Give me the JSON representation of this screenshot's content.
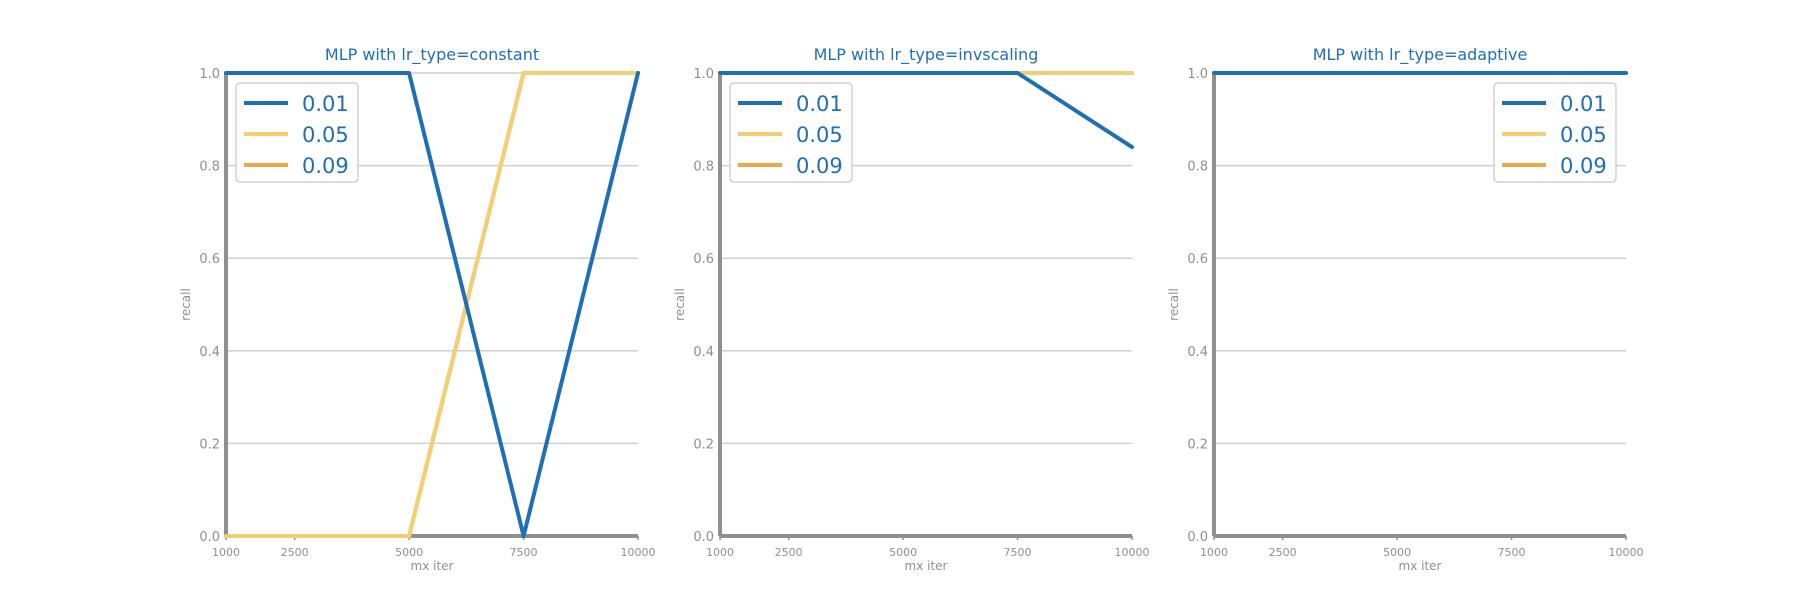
{
  "chart_data": [
    {
      "type": "line",
      "title": "MLP with lr_type=constant",
      "xlabel": "mx iter",
      "ylabel": "recall",
      "x": [
        1000,
        2500,
        5000,
        7500,
        10000
      ],
      "xticks": [
        "1000",
        "2500",
        "5000",
        "7500",
        "10000"
      ],
      "xlim": [
        1000,
        10000
      ],
      "ylim": [
        0,
        1
      ],
      "yticks": [
        "0.0",
        "0.2",
        "0.4",
        "0.6",
        "0.8",
        "1.0"
      ],
      "grid": "horizontal",
      "legend": "top-left",
      "series": [
        {
          "name": "0.01",
          "color": "#1f6fb5",
          "values": [
            1.0,
            1.0,
            1.0,
            0.0,
            1.0
          ]
        },
        {
          "name": "0.05",
          "color": "#f2cf73",
          "values": [
            0.0,
            0.0,
            0.0,
            1.0,
            1.0
          ]
        },
        {
          "name": "0.09",
          "color": "#e8a94a",
          "values": [
            0.0,
            0.0,
            0.0,
            1.0,
            1.0
          ]
        }
      ]
    },
    {
      "type": "line",
      "title": "MLP with lr_type=invscaling",
      "xlabel": "mx iter",
      "ylabel": "recall",
      "x": [
        1000,
        2500,
        5000,
        7500,
        10000
      ],
      "xticks": [
        "1000",
        "2500",
        "5000",
        "7500",
        "10000"
      ],
      "xlim": [
        1000,
        10000
      ],
      "ylim": [
        0,
        1
      ],
      "yticks": [
        "0.0",
        "0.2",
        "0.4",
        "0.6",
        "0.8",
        "1.0"
      ],
      "grid": "horizontal",
      "legend": "top-left",
      "series": [
        {
          "name": "0.01",
          "color": "#1f6fb5",
          "values": [
            1.0,
            1.0,
            1.0,
            1.0,
            0.84
          ]
        },
        {
          "name": "0.05",
          "color": "#f2cf73",
          "values": [
            1.0,
            1.0,
            1.0,
            1.0,
            1.0
          ]
        },
        {
          "name": "0.09",
          "color": "#e8a94a",
          "values": [
            1.0,
            1.0,
            1.0,
            1.0,
            1.0
          ]
        }
      ]
    },
    {
      "type": "line",
      "title": "MLP with lr_type=adaptive",
      "xlabel": "mx iter",
      "ylabel": "recall",
      "x": [
        1000,
        2500,
        5000,
        7500,
        10000
      ],
      "xticks": [
        "1000",
        "2500",
        "5000",
        "7500",
        "10000"
      ],
      "xlim": [
        1000,
        10000
      ],
      "ylim": [
        0,
        1
      ],
      "yticks": [
        "0.0",
        "0.2",
        "0.4",
        "0.6",
        "0.8",
        "1.0"
      ],
      "grid": "horizontal",
      "legend": "top-right",
      "series": [
        {
          "name": "0.01",
          "color": "#1f6fb5",
          "values": [
            1.0,
            1.0,
            1.0,
            1.0,
            1.0
          ]
        },
        {
          "name": "0.05",
          "color": "#f2cf73",
          "values": [
            1.0,
            1.0,
            1.0,
            1.0,
            1.0
          ]
        },
        {
          "name": "0.09",
          "color": "#e8a94a",
          "values": [
            1.0,
            1.0,
            1.0,
            1.0,
            1.0
          ]
        }
      ]
    }
  ]
}
